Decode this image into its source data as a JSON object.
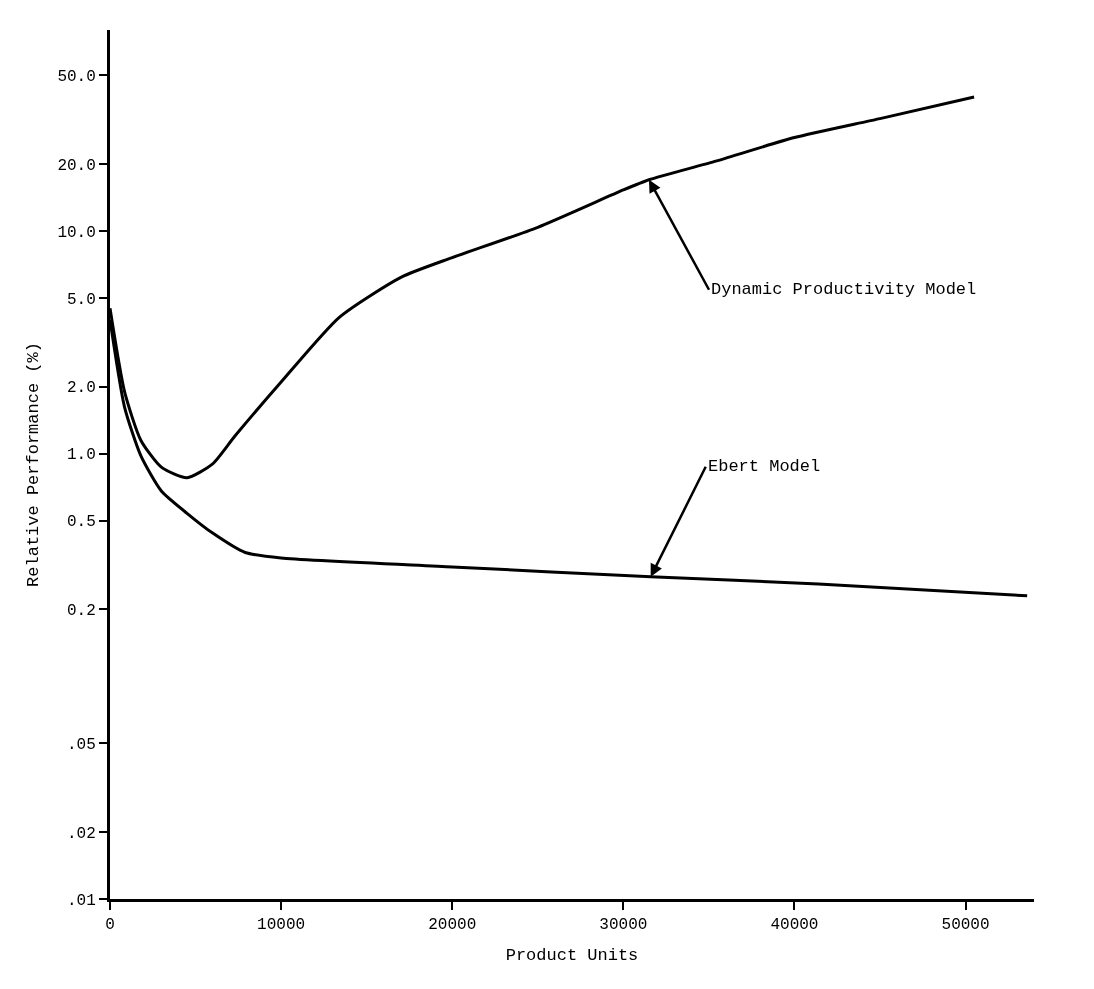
{
  "chart_data": {
    "type": "line",
    "xlabel": "Product Units",
    "ylabel": "Relative Performance (%)",
    "log": "y",
    "marker": "none",
    "line_style": "solid",
    "xlim": [
      0,
      54000
    ],
    "xticks": [
      0,
      10000,
      20000,
      30000,
      40000,
      50000
    ],
    "ylim": [
      0.01,
      80
    ],
    "yticks": [
      {
        "value": 0.01,
        "label": ".01"
      },
      {
        "value": 0.02,
        "label": ".02"
      },
      {
        "value": 0.05,
        "label": ".05"
      },
      {
        "value": 0.2,
        "label": "0.2"
      },
      {
        "value": 0.5,
        "label": "0.5"
      },
      {
        "value": 1,
        "label": "1.0"
      },
      {
        "value": 2,
        "label": "2.0"
      },
      {
        "value": 5,
        "label": "5.0"
      },
      {
        "value": 10,
        "label": "10.0"
      },
      {
        "value": 20,
        "label": "20.0"
      },
      {
        "value": 50,
        "label": "50.0"
      }
    ],
    "series": [
      {
        "color": "#000000",
        "x": [
          0,
          850,
          1800,
          3000,
          4500,
          6000,
          7300,
          10000,
          13400,
          17000,
          20000,
          25000,
          30000,
          31500,
          35300,
          40000,
          45000,
          50500
        ],
        "values": [
          4.5,
          1.9,
          1.15,
          0.87,
          0.78,
          0.9,
          1.2,
          2.1,
          4.1,
          6.2,
          7.6,
          10.4,
          15.3,
          17,
          20.5,
          26.3,
          32,
          40
        ]
      },
      {
        "color": "#000000",
        "x": [
          0,
          850,
          1800,
          3000,
          4500,
          6000,
          7900,
          10000,
          20000,
          31600,
          41400,
          53600
        ],
        "values": [
          4.0,
          1.62,
          0.98,
          0.68,
          0.54,
          0.44,
          0.36,
          0.34,
          0.31,
          0.28,
          0.26,
          0.23
        ]
      }
    ],
    "annotations": [
      {
        "text": "Dynamic Productivity Model",
        "x": 31500,
        "y": 17
      },
      {
        "text": "Ebert Model",
        "x": 31600,
        "y": 0.28
      }
    ]
  }
}
